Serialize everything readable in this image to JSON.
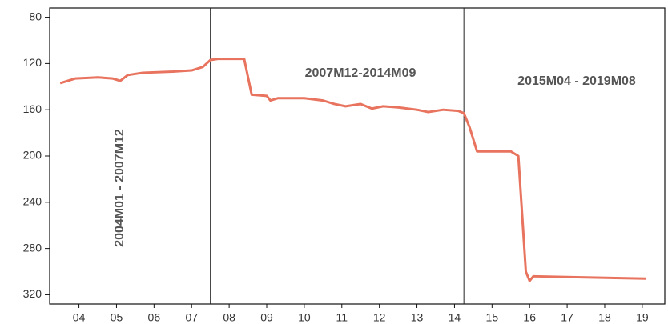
{
  "chart_data": {
    "type": "line",
    "annotations": [
      "2004M01 - 2007M12",
      "2007M12-2014M09",
      "2015M04 - 2019M08"
    ],
    "x": [
      2004.0,
      2004.2,
      2004.4,
      2005.0,
      2005.4,
      2005.6,
      2005.8,
      2006.2,
      2007.0,
      2007.5,
      2007.8,
      2008.0,
      2008.2,
      2008.9,
      2009.1,
      2009.5,
      2009.6,
      2009.8,
      2010.5,
      2011.0,
      2011.3,
      2011.6,
      2012.0,
      2012.3,
      2012.6,
      2013.0,
      2013.5,
      2013.8,
      2014.2,
      2014.6,
      2014.75,
      2014.9,
      2015.1,
      2016.0,
      2016.2,
      2016.4,
      2016.5,
      2016.6,
      2018.0,
      2019.6
    ],
    "series": [
      {
        "name": "series",
        "color": "#e8735e",
        "values": [
          137,
          135,
          133,
          132,
          133,
          135,
          130,
          128,
          127,
          126,
          123,
          117,
          116,
          116,
          147,
          148,
          152,
          150,
          150,
          152,
          155,
          157,
          155,
          159,
          157,
          158,
          160,
          162,
          160,
          161,
          163,
          175,
          196,
          196,
          200,
          300,
          308,
          304,
          305,
          306
        ]
      }
    ],
    "xlim": [
      2003.72,
      2020.1
    ],
    "ylim": [
      72,
      328
    ],
    "y_inverted": true,
    "yticks": [
      80,
      120,
      160,
      200,
      240,
      280,
      320
    ],
    "xticks": [
      {
        "value": 2004.5,
        "label": "04"
      },
      {
        "value": 2005.5,
        "label": "05"
      },
      {
        "value": 2006.5,
        "label": "06"
      },
      {
        "value": 2007.5,
        "label": "07"
      },
      {
        "value": 2008.5,
        "label": "08"
      },
      {
        "value": 2009.5,
        "label": "09"
      },
      {
        "value": 2010.5,
        "label": "10"
      },
      {
        "value": 2011.5,
        "label": "11"
      },
      {
        "value": 2012.5,
        "label": "12"
      },
      {
        "value": 2013.5,
        "label": "13"
      },
      {
        "value": 2014.5,
        "label": "14"
      },
      {
        "value": 2015.5,
        "label": "15"
      },
      {
        "value": 2016.5,
        "label": "16"
      },
      {
        "value": 2017.5,
        "label": "17"
      },
      {
        "value": 2018.5,
        "label": "18"
      },
      {
        "value": 2019.5,
        "label": "19"
      }
    ],
    "reference_lines_x": [
      2008.0,
      2014.75
    ]
  }
}
